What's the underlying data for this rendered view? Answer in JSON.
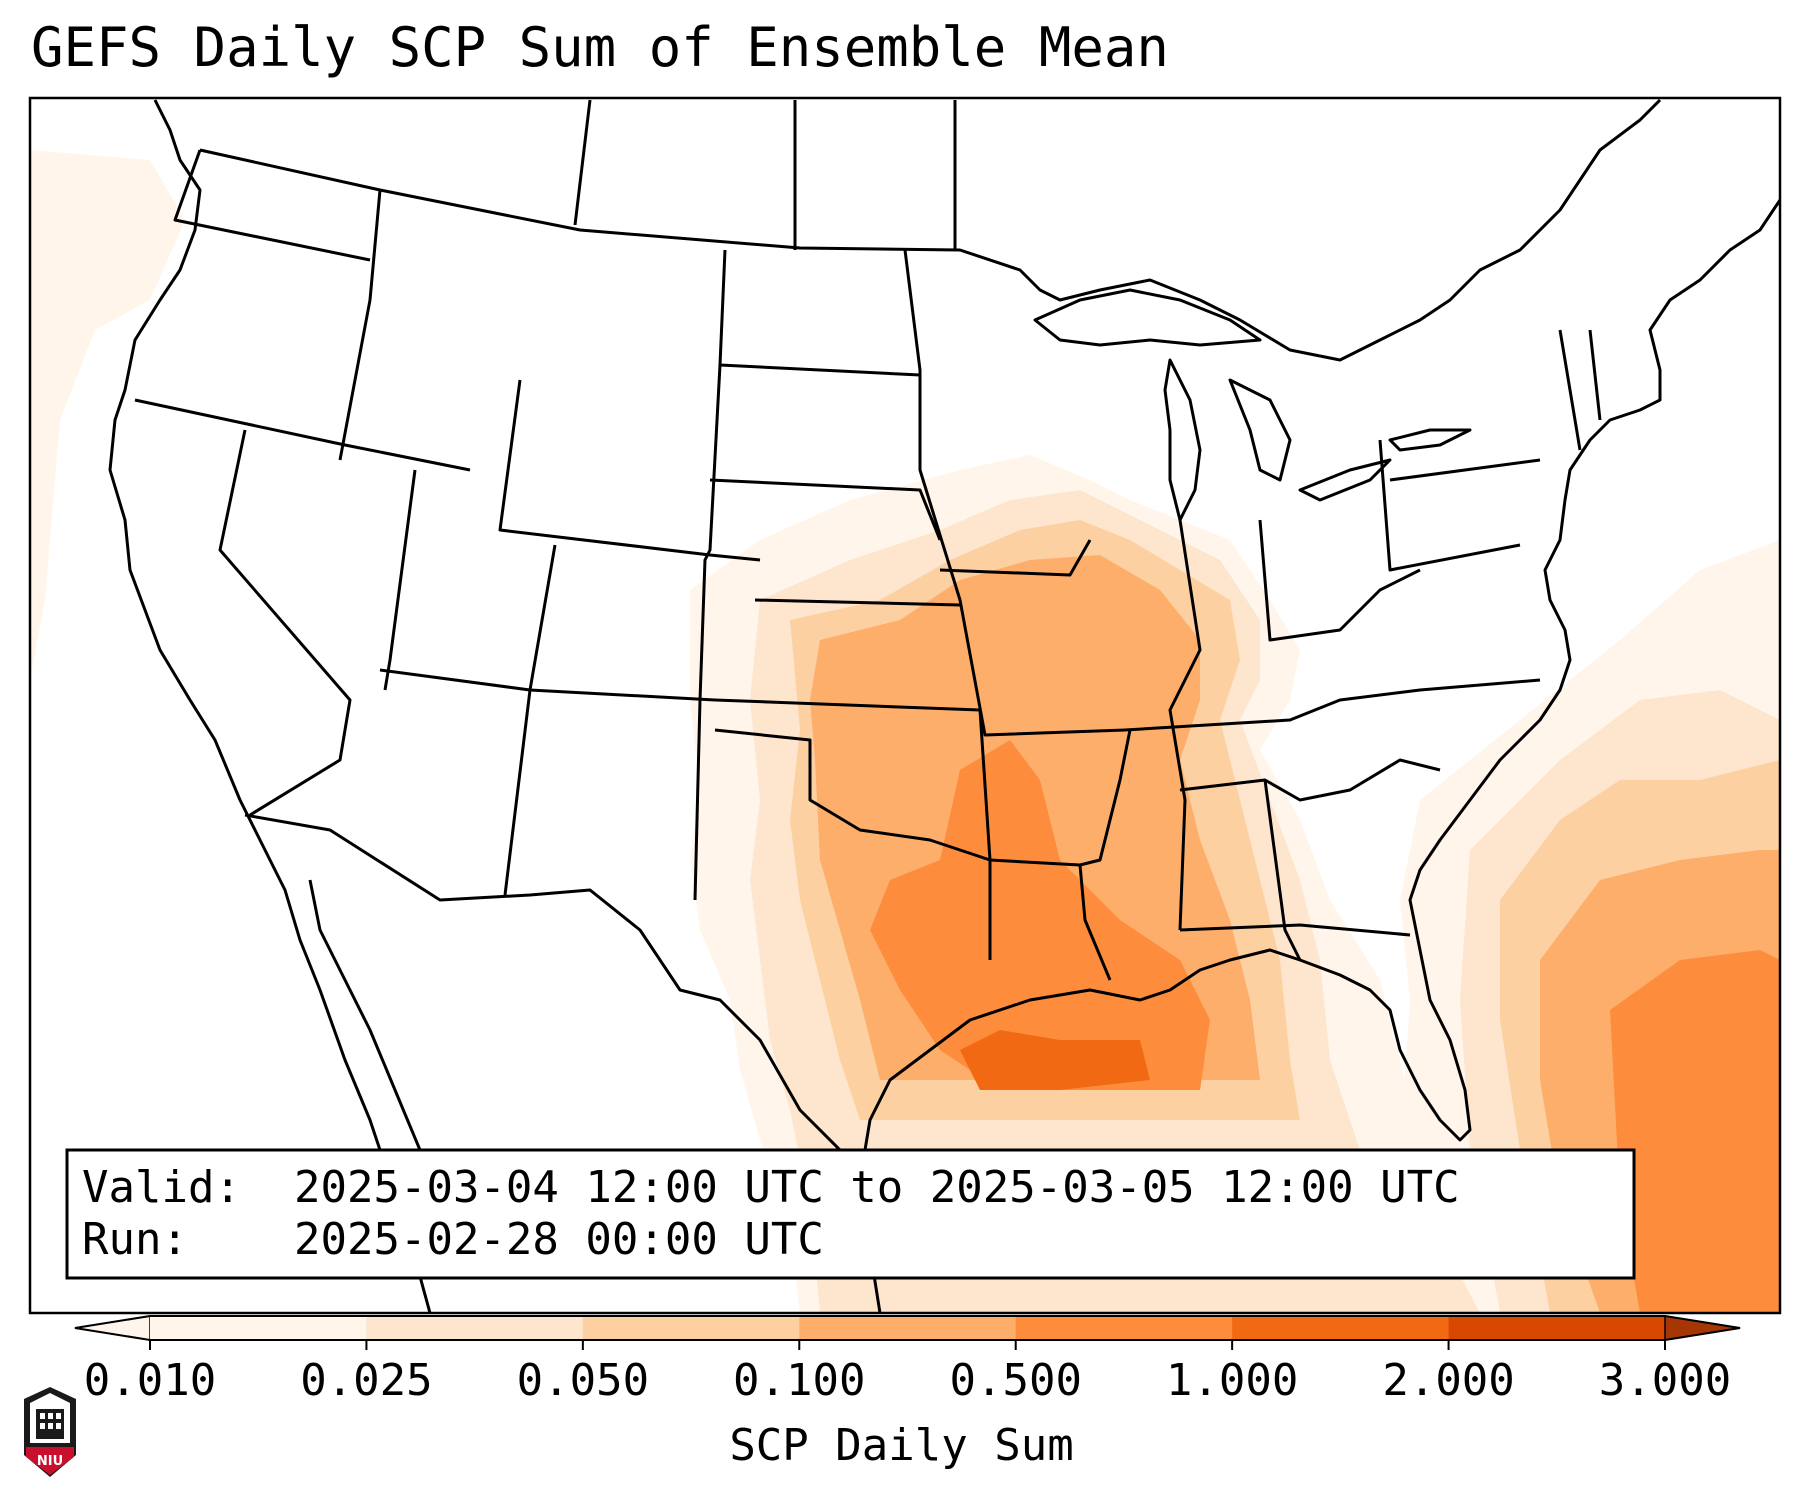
{
  "title": "GEFS Daily SCP Sum of Ensemble Mean",
  "info_box": {
    "valid_label": "Valid:",
    "valid_value": "2025-03-04 12:00 UTC to 2025-03-05 12:00 UTC",
    "run_label": "Run:",
    "run_value": "2025-02-28 00:00 UTC"
  },
  "colorbar": {
    "label": "SCP Daily Sum",
    "levels": [
      "0.010",
      "0.025",
      "0.050",
      "0.100",
      "0.500",
      "1.000",
      "2.000",
      "3.000"
    ],
    "colors": [
      "#fff5eb",
      "#fee6ce",
      "#fdd0a2",
      "#fdae6b",
      "#fd8d3c",
      "#f16913",
      "#d94801",
      "#a63603"
    ],
    "extend": "both"
  },
  "logo": {
    "text": "NIU",
    "colors": {
      "red": "#c8102e",
      "dark": "#1a1a1a"
    }
  }
}
